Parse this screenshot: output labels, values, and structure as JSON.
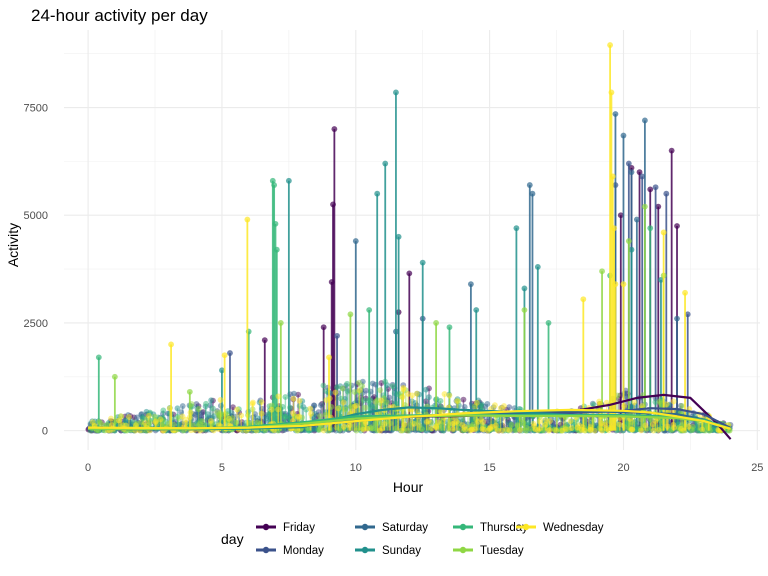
{
  "chart_data": {
    "type": "scatter",
    "title": "24-hour activity per day",
    "xlabel": "Hour",
    "ylabel": "Activity",
    "xlim": [
      -0.9,
      25.1
    ],
    "ylim": [
      -450,
      9300
    ],
    "x_ticks": [
      0,
      5,
      10,
      15,
      20,
      25
    ],
    "y_ticks": [
      0,
      2500,
      5000,
      7500
    ],
    "grid": true,
    "legend_position": "bottom",
    "legend_title": "day",
    "series": [
      {
        "name": "Friday",
        "color": "#440154",
        "spikes": [
          [
            6.6,
            2100
          ],
          [
            8.8,
            2400
          ],
          [
            9.2,
            7000
          ],
          [
            9.15,
            5250
          ],
          [
            9.1,
            3450
          ],
          [
            11.6,
            2750
          ],
          [
            12.0,
            3650
          ],
          [
            19.9,
            5000
          ],
          [
            20.3,
            6100
          ],
          [
            20.6,
            6000
          ],
          [
            21.0,
            5600
          ],
          [
            21.3,
            5200
          ],
          [
            21.8,
            6500
          ],
          [
            22.0,
            4750
          ]
        ],
        "smooth": [
          [
            0,
            60
          ],
          [
            2,
            50
          ],
          [
            4,
            45
          ],
          [
            6,
            55
          ],
          [
            8,
            90
          ],
          [
            10,
            280
          ],
          [
            12,
            320
          ],
          [
            14,
            340
          ],
          [
            16,
            390
          ],
          [
            18,
            440
          ],
          [
            19.5,
            600
          ],
          [
            20.5,
            760
          ],
          [
            21.5,
            830
          ],
          [
            22.5,
            760
          ],
          [
            23.5,
            160
          ],
          [
            24,
            -200
          ]
        ]
      },
      {
        "name": "Monday",
        "color": "#3b528b",
        "spikes": [
          [
            5.3,
            1800
          ],
          [
            9.3,
            2200
          ],
          [
            12.5,
            2600
          ],
          [
            19.7,
            5700
          ],
          [
            20.2,
            6200
          ],
          [
            20.7,
            5900
          ],
          [
            21.2,
            5650
          ],
          [
            21.6,
            5500
          ],
          [
            22.4,
            2700
          ]
        ],
        "smooth": [
          [
            0,
            40
          ],
          [
            2,
            35
          ],
          [
            4,
            40
          ],
          [
            6,
            60
          ],
          [
            8,
            170
          ],
          [
            10,
            250
          ],
          [
            12,
            340
          ],
          [
            14,
            360
          ],
          [
            16,
            380
          ],
          [
            18,
            410
          ],
          [
            20,
            460
          ],
          [
            21,
            520
          ],
          [
            22,
            500
          ],
          [
            23,
            380
          ],
          [
            24,
            60
          ]
        ]
      },
      {
        "name": "Saturday",
        "color": "#31688e",
        "spikes": [
          [
            10.0,
            4400
          ],
          [
            11.5,
            2300
          ],
          [
            14.3,
            3400
          ],
          [
            16.5,
            5700
          ],
          [
            16.6,
            5500
          ],
          [
            19.7,
            7350
          ],
          [
            20.0,
            6850
          ],
          [
            20.3,
            6000
          ],
          [
            20.5,
            4900
          ],
          [
            20.8,
            7200
          ],
          [
            22.0,
            2600
          ]
        ],
        "smooth": [
          [
            0,
            50
          ],
          [
            2,
            45
          ],
          [
            4,
            50
          ],
          [
            6,
            80
          ],
          [
            8,
            120
          ],
          [
            10,
            220
          ],
          [
            12,
            320
          ],
          [
            14,
            360
          ],
          [
            16,
            420
          ],
          [
            18,
            460
          ],
          [
            20,
            430
          ],
          [
            21,
            410
          ],
          [
            22,
            380
          ],
          [
            23,
            260
          ],
          [
            24,
            40
          ]
        ]
      },
      {
        "name": "Sunday",
        "color": "#21908c",
        "spikes": [
          [
            5.0,
            1400
          ],
          [
            7.5,
            5800
          ],
          [
            10.8,
            5500
          ],
          [
            11.1,
            6200
          ],
          [
            11.5,
            7850
          ],
          [
            11.6,
            4500
          ],
          [
            12.5,
            3900
          ],
          [
            14.5,
            2800
          ],
          [
            16.0,
            4700
          ],
          [
            16.3,
            3300
          ],
          [
            16.8,
            3800
          ],
          [
            20.3,
            4200
          ],
          [
            21.4,
            3500
          ]
        ],
        "smooth": [
          [
            0,
            40
          ],
          [
            2,
            35
          ],
          [
            4,
            35
          ],
          [
            6,
            45
          ],
          [
            8,
            80
          ],
          [
            10,
            380
          ],
          [
            11,
            480
          ],
          [
            12,
            540
          ],
          [
            13,
            520
          ],
          [
            14,
            480
          ],
          [
            16,
            430
          ],
          [
            18,
            360
          ],
          [
            20,
            330
          ],
          [
            22,
            300
          ],
          [
            23,
            220
          ],
          [
            24,
            40
          ]
        ]
      },
      {
        "name": "Thursday",
        "color": "#35b779",
        "spikes": [
          [
            0.4,
            1700
          ],
          [
            6.0,
            2300
          ],
          [
            6.9,
            5800
          ],
          [
            6.95,
            5700
          ],
          [
            7.0,
            4800
          ],
          [
            7.05,
            4200
          ],
          [
            10.5,
            2800
          ],
          [
            13.5,
            2400
          ],
          [
            17.2,
            2500
          ],
          [
            19.5,
            3600
          ],
          [
            21.0,
            4700
          ]
        ],
        "smooth": [
          [
            0,
            40
          ],
          [
            2,
            40
          ],
          [
            4,
            50
          ],
          [
            6,
            90
          ],
          [
            8,
            190
          ],
          [
            10,
            330
          ],
          [
            12,
            350
          ],
          [
            14,
            370
          ],
          [
            16,
            360
          ],
          [
            18,
            360
          ],
          [
            20,
            360
          ],
          [
            22,
            320
          ],
          [
            23,
            250
          ],
          [
            24,
            40
          ]
        ]
      },
      {
        "name": "Tuesday",
        "color": "#8fd744",
        "spikes": [
          [
            1.0,
            1250
          ],
          [
            3.8,
            900
          ],
          [
            7.2,
            2500
          ],
          [
            9.8,
            2700
          ],
          [
            13.0,
            2500
          ],
          [
            16.3,
            2800
          ],
          [
            19.2,
            3700
          ],
          [
            20.2,
            4400
          ],
          [
            20.8,
            5200
          ],
          [
            21.5,
            3600
          ]
        ],
        "smooth": [
          [
            0,
            45
          ],
          [
            2,
            40
          ],
          [
            4,
            45
          ],
          [
            6,
            70
          ],
          [
            8,
            160
          ],
          [
            10,
            280
          ],
          [
            12,
            330
          ],
          [
            14,
            350
          ],
          [
            16,
            340
          ],
          [
            18,
            340
          ],
          [
            20,
            330
          ],
          [
            22,
            290
          ],
          [
            23,
            220
          ],
          [
            24,
            50
          ]
        ]
      },
      {
        "name": "Wednesday",
        "color": "#fde725",
        "spikes": [
          [
            3.1,
            2000
          ],
          [
            5.1,
            1750
          ],
          [
            5.95,
            4900
          ],
          [
            9.0,
            1700
          ],
          [
            18.5,
            3050
          ],
          [
            19.5,
            8950
          ],
          [
            19.55,
            7850
          ],
          [
            19.6,
            5900
          ],
          [
            19.65,
            4700
          ],
          [
            19.7,
            3400
          ],
          [
            20.0,
            3400
          ],
          [
            21.5,
            4600
          ],
          [
            22.3,
            3200
          ]
        ],
        "smooth": [
          [
            0,
            70
          ],
          [
            2,
            60
          ],
          [
            4,
            55
          ],
          [
            6,
            70
          ],
          [
            8,
            110
          ],
          [
            10,
            220
          ],
          [
            12,
            320
          ],
          [
            14,
            400
          ],
          [
            16,
            450
          ],
          [
            18,
            480
          ],
          [
            20,
            460
          ],
          [
            21,
            420
          ],
          [
            22,
            330
          ],
          [
            23,
            220
          ],
          [
            24,
            40
          ]
        ]
      }
    ]
  }
}
